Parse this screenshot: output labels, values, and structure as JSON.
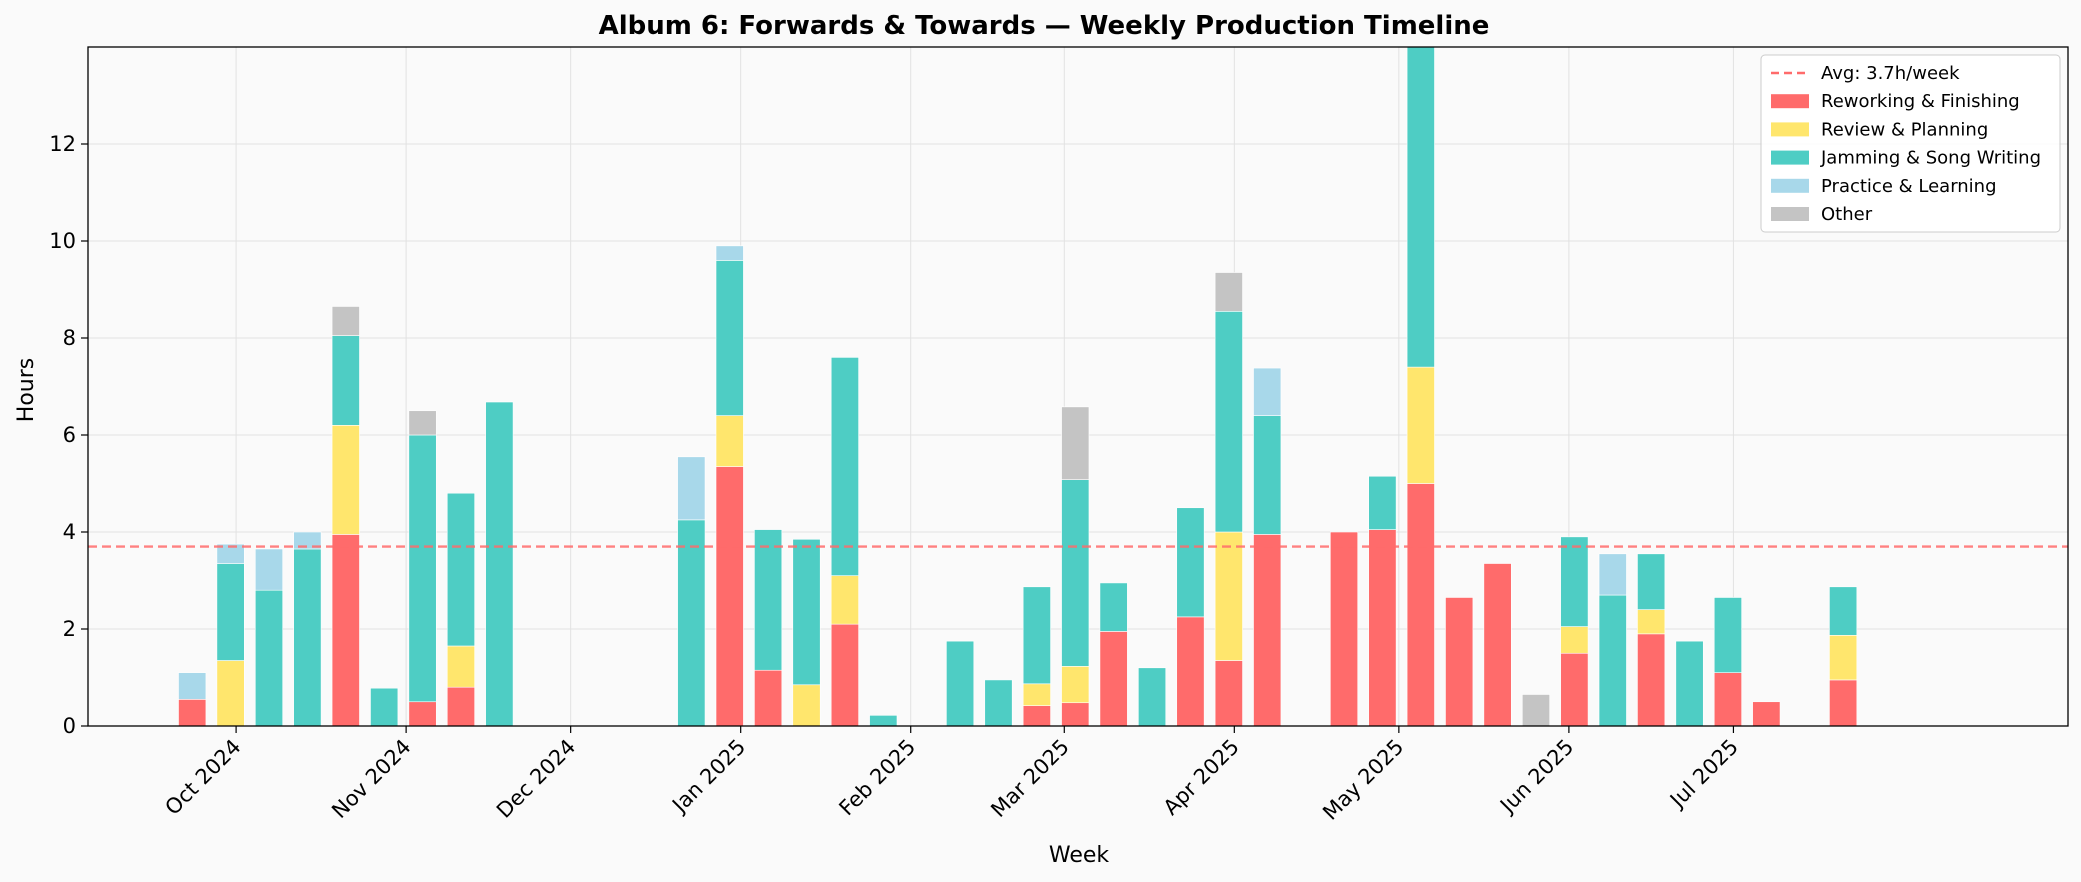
{
  "chart_data": {
    "type": "bar",
    "stacked": true,
    "title": "Album 6: Forwards & Towards — Weekly Production Timeline",
    "xlabel": "Week",
    "ylabel": "Hours",
    "ylim": [
      0,
      14
    ],
    "yticks": [
      0,
      2,
      4,
      6,
      8,
      10,
      12
    ],
    "grid": true,
    "legend_position": "top-right",
    "x_range": [
      "2024-09-04",
      "2025-08-31"
    ],
    "xticks": [
      {
        "date": "2024-10-01",
        "label": "Oct 2024"
      },
      {
        "date": "2024-11-01",
        "label": "Nov 2024"
      },
      {
        "date": "2024-12-01",
        "label": "Dec 2024"
      },
      {
        "date": "2025-01-01",
        "label": "Jan 2025"
      },
      {
        "date": "2025-02-01",
        "label": "Feb 2025"
      },
      {
        "date": "2025-03-01",
        "label": "Mar 2025"
      },
      {
        "date": "2025-04-01",
        "label": "Apr 2025"
      },
      {
        "date": "2025-05-01",
        "label": "May 2025"
      },
      {
        "date": "2025-06-01",
        "label": "Jun 2025"
      },
      {
        "date": "2025-07-01",
        "label": "Jul 2025"
      }
    ],
    "average": {
      "value": 3.7,
      "label": "Avg: 3.7h/week",
      "color": "#ff6b6b"
    },
    "weeks": [
      "2024-09-23",
      "2024-09-30",
      "2024-10-07",
      "2024-10-14",
      "2024-10-21",
      "2024-10-28",
      "2024-11-04",
      "2024-11-11",
      "2024-11-18",
      "2024-11-25",
      "2024-12-02",
      "2024-12-09",
      "2024-12-16",
      "2024-12-23",
      "2024-12-30",
      "2025-01-06",
      "2025-01-13",
      "2025-01-20",
      "2025-01-27",
      "2025-02-03",
      "2025-02-10",
      "2025-02-17",
      "2025-02-24",
      "2025-03-03",
      "2025-03-10",
      "2025-03-17",
      "2025-03-24",
      "2025-03-31",
      "2025-04-07",
      "2025-04-14",
      "2025-04-21",
      "2025-04-28",
      "2025-05-05",
      "2025-05-12",
      "2025-05-19",
      "2025-05-26",
      "2025-06-02",
      "2025-06-09",
      "2025-06-16",
      "2025-06-23",
      "2025-06-30",
      "2025-07-07",
      "2025-07-14",
      "2025-07-21"
    ],
    "series": [
      {
        "name": "Reworking & Finishing",
        "color": "#ff6b6b",
        "values": [
          0.55,
          0,
          0,
          0,
          3.95,
          0,
          0.5,
          0.8,
          0,
          0,
          0,
          0,
          0,
          0,
          5.35,
          1.15,
          0,
          2.1,
          0,
          0,
          0,
          0,
          0.42,
          0.48,
          1.95,
          0,
          2.25,
          1.35,
          3.95,
          0,
          4.0,
          4.05,
          5.0,
          2.65,
          3.35,
          0,
          1.5,
          0,
          1.9,
          0,
          1.1,
          0.5,
          0,
          0.95
        ]
      },
      {
        "name": "Review & Planning",
        "color": "#ffe66d",
        "values": [
          0,
          1.35,
          0,
          0,
          2.25,
          0,
          0,
          0.85,
          0,
          0,
          0,
          0,
          0,
          0,
          1.05,
          0,
          0.85,
          1.0,
          0,
          0,
          0,
          0,
          0.45,
          0.75,
          0,
          0,
          0,
          2.65,
          0,
          0,
          0,
          0,
          2.4,
          0,
          0,
          0,
          0.55,
          0,
          0.5,
          0,
          0,
          0,
          0,
          0.92
        ]
      },
      {
        "name": "Jamming & Song Writing",
        "color": "#4ecdc4",
        "values": [
          0,
          2.0,
          2.8,
          3.65,
          1.85,
          0.78,
          5.5,
          3.15,
          6.68,
          0,
          0,
          0,
          0,
          4.25,
          3.2,
          2.9,
          3.0,
          4.5,
          0.22,
          0,
          1.75,
          0.95,
          2.0,
          3.85,
          1.0,
          1.2,
          2.25,
          4.55,
          2.45,
          0,
          0,
          1.1,
          6.6,
          0,
          0,
          0,
          1.85,
          2.7,
          1.15,
          1.75,
          1.55,
          0,
          0,
          1.0
        ]
      },
      {
        "name": "Practice & Learning",
        "color": "#a8d8ea",
        "values": [
          0.55,
          0.4,
          0.85,
          0.35,
          0,
          0,
          0,
          0,
          0,
          0,
          0,
          0,
          0,
          1.3,
          0.3,
          0,
          0,
          0,
          0,
          0,
          0,
          0,
          0,
          0,
          0,
          0,
          0,
          0,
          0.98,
          0,
          0,
          0,
          0,
          0,
          0,
          0,
          0,
          0.85,
          0,
          0,
          0,
          0,
          0,
          0
        ]
      },
      {
        "name": "Other",
        "color": "#c4c4c4",
        "values": [
          0,
          0,
          0,
          0,
          0.6,
          0,
          0.5,
          0,
          0,
          0,
          0,
          0,
          0,
          0,
          0,
          0,
          0,
          0,
          0,
          0,
          0,
          0,
          0,
          1.5,
          0,
          0,
          0,
          0.8,
          0,
          0,
          0,
          0,
          0,
          0,
          0,
          0.65,
          0,
          0,
          0,
          0,
          0,
          0,
          0,
          0
        ]
      }
    ]
  }
}
